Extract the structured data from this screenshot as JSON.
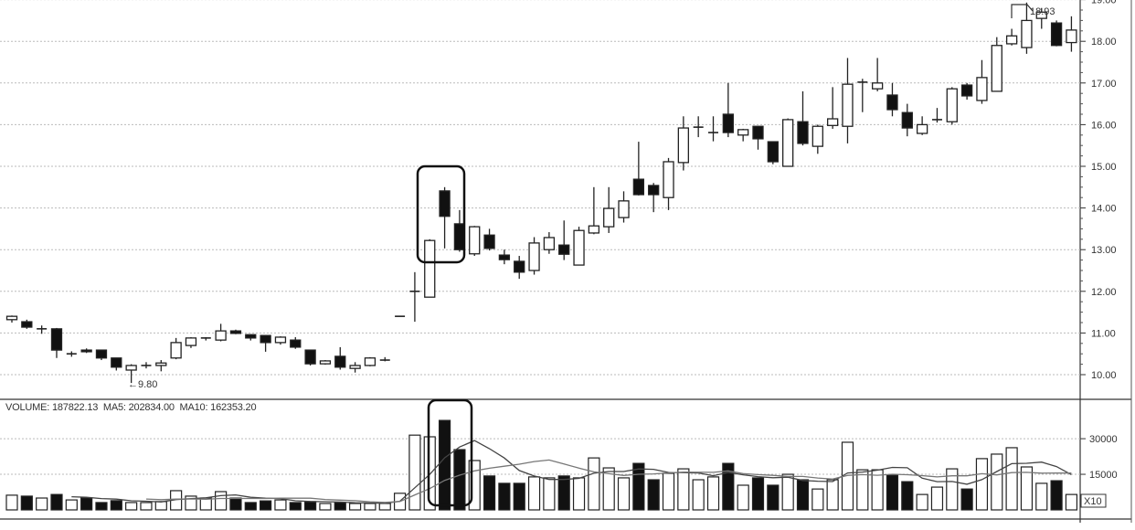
{
  "chart_data": {
    "type": "candlestick",
    "colors": {
      "up": "#ffffff",
      "down": "#111111",
      "outline": "#222222",
      "grid": "#bbbbbb"
    },
    "price_axis": {
      "range": [
        9.8,
        19.0
      ],
      "ticks": [
        "10.00",
        "11.00",
        "12.00",
        "13.00",
        "14.00",
        "15.00",
        "16.00",
        "17.00",
        "18.00",
        "19.00"
      ]
    },
    "volume_axis": {
      "range": [
        0,
        40000
      ],
      "ticks": [
        "15000",
        "30000"
      ],
      "multiplier_label": "X10"
    },
    "annotations": {
      "high_label": "18.93",
      "low_label": "←9.80"
    },
    "volume_header": {
      "text": "VOLUME: 187822.13  MA5: 202834.00  MA10: 162353.20"
    },
    "candles_ohlc": [
      [
        11.32,
        11.42,
        11.25,
        11.4
      ],
      [
        11.27,
        11.32,
        11.1,
        11.14
      ],
      [
        11.1,
        11.18,
        10.98,
        11.1
      ],
      [
        11.1,
        11.12,
        10.4,
        10.59
      ],
      [
        10.5,
        10.56,
        10.43,
        10.5
      ],
      [
        10.59,
        10.63,
        10.52,
        10.55
      ],
      [
        10.59,
        10.6,
        10.35,
        10.4
      ],
      [
        10.4,
        10.4,
        10.1,
        10.18
      ],
      [
        10.11,
        10.25,
        9.8,
        10.22
      ],
      [
        10.22,
        10.3,
        10.15,
        10.22
      ],
      [
        10.22,
        10.35,
        10.08,
        10.28
      ],
      [
        10.4,
        10.88,
        10.37,
        10.77
      ],
      [
        10.7,
        10.9,
        10.64,
        10.88
      ],
      [
        10.88,
        10.9,
        10.82,
        10.88
      ],
      [
        10.83,
        11.22,
        10.8,
        11.05
      ],
      [
        11.05,
        11.08,
        10.97,
        10.99
      ],
      [
        10.96,
        10.97,
        10.82,
        10.88
      ],
      [
        10.94,
        10.95,
        10.55,
        10.77
      ],
      [
        10.77,
        10.92,
        10.72,
        10.9
      ],
      [
        10.83,
        10.9,
        10.62,
        10.66
      ],
      [
        10.59,
        10.6,
        10.22,
        10.26
      ],
      [
        10.26,
        10.35,
        10.24,
        10.33
      ],
      [
        10.44,
        10.66,
        10.12,
        10.18
      ],
      [
        10.15,
        10.3,
        10.05,
        10.22
      ],
      [
        10.22,
        10.42,
        10.2,
        10.4
      ],
      [
        10.35,
        10.42,
        10.32,
        10.35
      ],
      [
        11.4,
        11.4,
        11.4,
        11.4
      ],
      [
        12.0,
        12.46,
        11.27,
        12.0
      ],
      [
        11.86,
        13.25,
        11.86,
        13.22
      ],
      [
        14.41,
        14.5,
        13.03,
        13.8
      ],
      [
        13.62,
        13.95,
        12.95,
        13.0
      ],
      [
        12.9,
        13.57,
        12.85,
        13.55
      ],
      [
        13.35,
        13.5,
        12.98,
        13.03
      ],
      [
        12.87,
        13.0,
        12.65,
        12.76
      ],
      [
        12.72,
        12.85,
        12.3,
        12.46
      ],
      [
        12.5,
        13.3,
        12.4,
        13.16
      ],
      [
        13.0,
        13.42,
        12.9,
        13.29
      ],
      [
        13.11,
        13.7,
        12.75,
        12.89
      ],
      [
        12.63,
        13.55,
        12.63,
        13.46
      ],
      [
        13.4,
        14.5,
        13.37,
        13.57
      ],
      [
        13.55,
        14.5,
        13.4,
        13.99
      ],
      [
        13.77,
        14.4,
        13.65,
        14.17
      ],
      [
        14.69,
        15.59,
        14.3,
        14.32
      ],
      [
        14.54,
        14.6,
        13.9,
        14.32
      ],
      [
        14.25,
        15.2,
        13.95,
        15.11
      ],
      [
        15.09,
        16.2,
        14.9,
        15.92
      ],
      [
        15.94,
        16.2,
        15.7,
        15.94
      ],
      [
        15.81,
        16.2,
        15.6,
        15.81
      ],
      [
        16.25,
        17.0,
        15.7,
        15.81
      ],
      [
        15.75,
        15.9,
        15.6,
        15.88
      ],
      [
        15.96,
        15.97,
        15.4,
        15.66
      ],
      [
        15.59,
        15.6,
        15.05,
        15.11
      ],
      [
        15.0,
        16.15,
        15.0,
        16.12
      ],
      [
        16.07,
        16.8,
        15.5,
        15.55
      ],
      [
        15.48,
        16.0,
        15.3,
        15.96
      ],
      [
        15.98,
        16.9,
        15.9,
        16.14
      ],
      [
        15.96,
        17.6,
        15.55,
        16.97
      ],
      [
        17.02,
        17.1,
        16.3,
        17.02
      ],
      [
        16.86,
        17.6,
        16.8,
        17.0
      ],
      [
        16.71,
        17.0,
        16.2,
        16.36
      ],
      [
        16.29,
        16.5,
        15.72,
        15.92
      ],
      [
        15.79,
        16.2,
        15.75,
        16.0
      ],
      [
        16.12,
        16.4,
        16.05,
        16.12
      ],
      [
        16.07,
        16.9,
        16.0,
        16.86
      ],
      [
        16.95,
        17.0,
        16.6,
        16.69
      ],
      [
        16.58,
        17.55,
        16.5,
        17.13
      ],
      [
        16.8,
        18.1,
        16.8,
        17.9
      ],
      [
        17.94,
        18.3,
        17.9,
        18.13
      ],
      [
        17.85,
        18.93,
        17.7,
        18.5
      ],
      [
        18.55,
        18.8,
        18.3,
        18.7
      ],
      [
        18.44,
        18.5,
        17.88,
        17.9
      ],
      [
        17.97,
        18.6,
        17.75,
        18.27
      ]
    ],
    "volumes": [
      6200,
      5800,
      5000,
      6500,
      4200,
      5000,
      3100,
      3900,
      3100,
      3100,
      3500,
      8100,
      5800,
      5000,
      7700,
      5000,
      3100,
      3800,
      4200,
      3100,
      3500,
      2700,
      3100,
      2700,
      2700,
      2700,
      7000,
      31500,
      30800,
      37700,
      25400,
      20800,
      14300,
      11200,
      11200,
      13900,
      13500,
      14300,
      13500,
      21900,
      17700,
      13500,
      19600,
      12700,
      15400,
      17300,
      12700,
      13900,
      19600,
      10400,
      13500,
      10400,
      15000,
      12700,
      8800,
      12700,
      28500,
      16900,
      16900,
      14600,
      11900,
      6500,
      9600,
      17300,
      8800,
      21600,
      23500,
      26200,
      18100,
      11200,
      12300,
      6500
    ],
    "moving_averages": [
      "MA5",
      "MA10"
    ]
  }
}
